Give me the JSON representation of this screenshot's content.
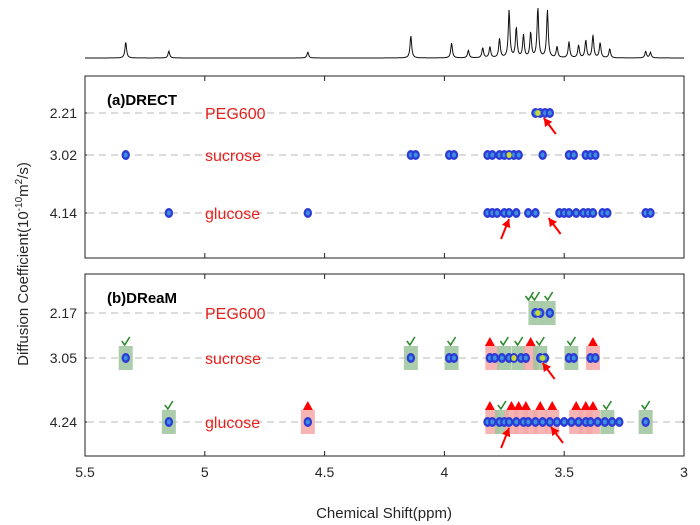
{
  "chart_data": {
    "type": "scatter",
    "xlabel": "Chemical Shift(ppm)",
    "ylabel": "Diffusion Coefficient(10",
    "ylabel_exp": "-10",
    "ylabel_tail": "m",
    "ylabel_exp2": "2",
    "ylabel_end": "/s)",
    "xlim": [
      5.5,
      3
    ],
    "x_reversed": true,
    "x_ticks": [
      "5.5",
      "5",
      "4.5",
      "4",
      "3.5",
      "3"
    ],
    "x_tick_values": [
      5.5,
      5.0,
      4.5,
      4.0,
      3.5,
      3.0
    ],
    "spectrum_peaks": [
      {
        "x": 5.33,
        "h": 0.32
      },
      {
        "x": 5.15,
        "h": 0.14
      },
      {
        "x": 4.57,
        "h": 0.12
      },
      {
        "x": 4.14,
        "h": 0.45
      },
      {
        "x": 3.97,
        "h": 0.3
      },
      {
        "x": 3.9,
        "h": 0.15
      },
      {
        "x": 3.84,
        "h": 0.2
      },
      {
        "x": 3.81,
        "h": 0.22
      },
      {
        "x": 3.77,
        "h": 0.38
      },
      {
        "x": 3.73,
        "h": 0.95
      },
      {
        "x": 3.7,
        "h": 0.6
      },
      {
        "x": 3.67,
        "h": 0.45
      },
      {
        "x": 3.64,
        "h": 0.5
      },
      {
        "x": 3.61,
        "h": 1.0
      },
      {
        "x": 3.57,
        "h": 0.95
      },
      {
        "x": 3.53,
        "h": 0.22
      },
      {
        "x": 3.48,
        "h": 0.32
      },
      {
        "x": 3.44,
        "h": 0.25
      },
      {
        "x": 3.41,
        "h": 0.35
      },
      {
        "x": 3.38,
        "h": 0.45
      },
      {
        "x": 3.35,
        "h": 0.3
      },
      {
        "x": 3.31,
        "h": 0.18
      },
      {
        "x": 3.16,
        "h": 0.13
      },
      {
        "x": 3.14,
        "h": 0.11
      }
    ],
    "panels": [
      {
        "label": "(a)DRECT",
        "y_ticks": [
          "2.21",
          "3.02",
          "4.14"
        ],
        "rows": [
          {
            "name": "PEG600",
            "y_label": "2.21",
            "points": [
              3.62,
              3.6,
              3.58,
              3.56
            ]
          },
          {
            "name": "sucrose",
            "y_label": "3.02",
            "points": [
              5.33,
              4.14,
              4.12,
              3.98,
              3.96,
              3.82,
              3.8,
              3.77,
              3.75,
              3.73,
              3.71,
              3.69,
              3.59,
              3.48,
              3.46,
              3.41,
              3.39,
              3.37
            ]
          },
          {
            "name": "glucose",
            "y_label": "4.14",
            "points": [
              5.15,
              4.57,
              3.82,
              3.8,
              3.78,
              3.75,
              3.73,
              3.7,
              3.65,
              3.62,
              3.52,
              3.5,
              3.48,
              3.45,
              3.42,
              3.4,
              3.38,
              3.34,
              3.32,
              3.16,
              3.14
            ]
          }
        ],
        "arrows": [
          {
            "x": 3.585,
            "row": 0,
            "dir": "left-up"
          },
          {
            "x": 3.73,
            "row": 2,
            "dir": "down-left"
          },
          {
            "x": 3.565,
            "row": 2,
            "dir": "left-up"
          }
        ],
        "checks": [],
        "triangles": [],
        "bars": []
      },
      {
        "label": "(b)DReaM",
        "y_ticks": [
          "2.17",
          "3.05",
          "4.24"
        ],
        "rows": [
          {
            "name": "PEG600",
            "y_label": "2.17",
            "points": [
              3.62,
              3.6,
              3.56
            ]
          },
          {
            "name": "sucrose",
            "y_label": "3.05",
            "points": [
              5.33,
              4.14,
              3.98,
              3.96,
              3.81,
              3.79,
              3.76,
              3.73,
              3.71,
              3.68,
              3.66,
              3.6,
              3.58,
              3.48,
              3.46,
              3.39,
              3.37
            ]
          },
          {
            "name": "glucose",
            "y_label": "4.24",
            "points": [
              5.15,
              4.57,
              3.82,
              3.8,
              3.77,
              3.75,
              3.73,
              3.7,
              3.67,
              3.65,
              3.62,
              3.59,
              3.56,
              3.53,
              3.5,
              3.47,
              3.44,
              3.41,
              3.39,
              3.36,
              3.33,
              3.3,
              3.27,
              3.16
            ]
          }
        ],
        "bars": [
          {
            "x": 3.62,
            "row": 0,
            "color": "green"
          },
          {
            "x": 3.565,
            "row": 0,
            "color": "green"
          },
          {
            "x": 5.33,
            "row": 1,
            "color": "green"
          },
          {
            "x": 4.14,
            "row": 1,
            "color": "green"
          },
          {
            "x": 3.97,
            "row": 1,
            "color": "green"
          },
          {
            "x": 3.8,
            "row": 1,
            "color": "red"
          },
          {
            "x": 3.75,
            "row": 1,
            "color": "green"
          },
          {
            "x": 3.69,
            "row": 1,
            "color": "green"
          },
          {
            "x": 3.64,
            "row": 1,
            "color": "red"
          },
          {
            "x": 3.6,
            "row": 1,
            "color": "green"
          },
          {
            "x": 3.47,
            "row": 1,
            "color": "green"
          },
          {
            "x": 3.38,
            "row": 1,
            "color": "red"
          },
          {
            "x": 5.15,
            "row": 2,
            "color": "green"
          },
          {
            "x": 4.57,
            "row": 2,
            "color": "red"
          },
          {
            "x": 3.8,
            "row": 2,
            "color": "red"
          },
          {
            "x": 3.76,
            "row": 2,
            "color": "green"
          },
          {
            "x": 3.72,
            "row": 2,
            "color": "red"
          },
          {
            "x": 3.68,
            "row": 2,
            "color": "red"
          },
          {
            "x": 3.64,
            "row": 2,
            "color": "red"
          },
          {
            "x": 3.6,
            "row": 2,
            "color": "red"
          },
          {
            "x": 3.55,
            "row": 2,
            "color": "red"
          },
          {
            "x": 3.45,
            "row": 2,
            "color": "red"
          },
          {
            "x": 3.41,
            "row": 2,
            "color": "red"
          },
          {
            "x": 3.38,
            "row": 2,
            "color": "red"
          },
          {
            "x": 3.32,
            "row": 2,
            "color": "green"
          },
          {
            "x": 3.16,
            "row": 2,
            "color": "green"
          }
        ],
        "checks": [
          {
            "x": 3.645,
            "row": 0
          },
          {
            "x": 3.62,
            "row": 0
          },
          {
            "x": 3.565,
            "row": 0
          },
          {
            "x": 5.33,
            "row": 1
          },
          {
            "x": 4.14,
            "row": 1
          },
          {
            "x": 3.97,
            "row": 1
          },
          {
            "x": 3.75,
            "row": 1
          },
          {
            "x": 3.69,
            "row": 1
          },
          {
            "x": 3.6,
            "row": 1
          },
          {
            "x": 3.47,
            "row": 1
          },
          {
            "x": 5.15,
            "row": 2
          },
          {
            "x": 3.76,
            "row": 2
          },
          {
            "x": 3.32,
            "row": 2
          },
          {
            "x": 3.16,
            "row": 2
          }
        ],
        "triangles": [
          {
            "x": 3.81,
            "row": 1
          },
          {
            "x": 3.64,
            "row": 1
          },
          {
            "x": 3.38,
            "row": 1
          },
          {
            "x": 4.57,
            "row": 2
          },
          {
            "x": 3.81,
            "row": 2
          },
          {
            "x": 3.72,
            "row": 2
          },
          {
            "x": 3.69,
            "row": 2
          },
          {
            "x": 3.66,
            "row": 2
          },
          {
            "x": 3.6,
            "row": 2
          },
          {
            "x": 3.55,
            "row": 2
          },
          {
            "x": 3.45,
            "row": 2
          },
          {
            "x": 3.41,
            "row": 2
          },
          {
            "x": 3.38,
            "row": 2
          }
        ],
        "arrows": [
          {
            "x": 3.59,
            "row": 1,
            "dir": "left-up"
          },
          {
            "x": 3.73,
            "row": 2,
            "dir": "down-left"
          },
          {
            "x": 3.555,
            "row": 2,
            "dir": "left-up"
          }
        ]
      }
    ]
  },
  "colors": {
    "label_red": "#e8211d",
    "dot_blue": "#2d3ad6",
    "dot_center": "#3fa7e0",
    "dot_hot": "#c9d836",
    "check_green": "#2e8b2e",
    "bar_green": "#9cc49c",
    "bar_red": "#f4a7a7",
    "triangle_red": "#ff0000",
    "arrow_red": "#ff0000"
  }
}
